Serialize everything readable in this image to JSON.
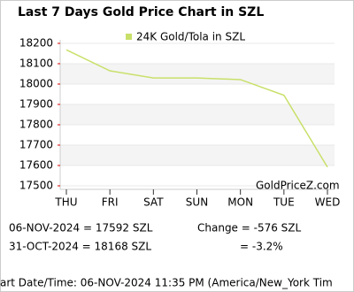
{
  "chart_data": {
    "type": "line",
    "title": "Last 7 Days Gold Price Chart in SZL",
    "categories": [
      "THU",
      "FRI",
      "SAT",
      "SUN",
      "MON",
      "TUE",
      "WED"
    ],
    "series": [
      {
        "name": "24K Gold/Tola in SZL",
        "color": "#c8e06a",
        "values": [
          18168,
          18065,
          18030,
          18030,
          18022,
          17945,
          17592
        ]
      }
    ],
    "ylim": [
      17500,
      18200
    ],
    "yticks": [
      17500,
      17600,
      17700,
      17800,
      17900,
      18000,
      18100,
      18200
    ],
    "grid": true,
    "legend": "top",
    "watermark": "GoldPriceZ.com",
    "summary": {
      "latest": "06-NOV-2024 = 17592 SZL",
      "earliest": "31-OCT-2024 = 18168 SZL",
      "change": "Change   =   -576 SZL",
      "change_percent": "=   -3.2%",
      "footer": "art Date/Time: 06-NOV-2024 11:35 PM (America/New_York Tim"
    }
  }
}
